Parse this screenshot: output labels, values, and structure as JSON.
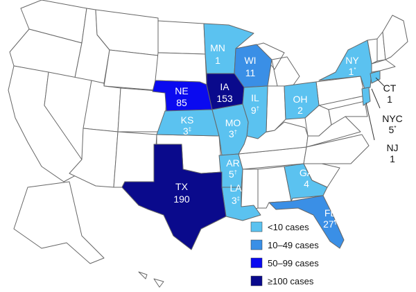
{
  "colors": {
    "none": "#ffffff",
    "lt10": "#5bc2f0",
    "c10_49": "#3a8fe6",
    "c50_99": "#0a0af0",
    "ge100": "#0a0a8c",
    "border": "#666666"
  },
  "states": {
    "MN": {
      "abbr": "MN",
      "count": "1",
      "mark": ""
    },
    "WI": {
      "abbr": "WI",
      "count": "11",
      "mark": ""
    },
    "NY": {
      "abbr": "NY",
      "count": "1",
      "mark": "*"
    },
    "NE": {
      "abbr": "NE",
      "count": "85",
      "mark": ""
    },
    "IA": {
      "abbr": "IA",
      "count": "153",
      "mark": ""
    },
    "IL": {
      "abbr": "IL",
      "count": "9",
      "mark": "†"
    },
    "OH": {
      "abbr": "OH",
      "count": "2",
      "mark": ""
    },
    "KS": {
      "abbr": "KS",
      "count": "3",
      "mark": "‡"
    },
    "MO": {
      "abbr": "MO",
      "count": "3",
      "mark": "†"
    },
    "AR": {
      "abbr": "AR",
      "count": "5",
      "mark": "†"
    },
    "GA": {
      "abbr": "GA",
      "count": "4",
      "mark": ""
    },
    "TX": {
      "abbr": "TX",
      "count": "190",
      "mark": ""
    },
    "LA": {
      "abbr": "LA",
      "count": "3",
      "mark": "‡"
    },
    "FL": {
      "abbr": "FL",
      "count": "27",
      "mark": "¶"
    },
    "CT": {
      "abbr": "CT",
      "count": "1",
      "mark": ""
    },
    "NYC": {
      "abbr": "NYC",
      "count": "5",
      "mark": "*"
    },
    "NJ": {
      "abbr": "NJ",
      "count": "1",
      "mark": ""
    }
  },
  "legend": [
    {
      "label": "<10 cases",
      "color_key": "lt10"
    },
    {
      "label": "10–49 cases",
      "color_key": "c10_49"
    },
    {
      "label": "50–99 cases",
      "color_key": "c50_99"
    },
    {
      "label": "≥100 cases",
      "color_key": "ge100"
    }
  ]
}
